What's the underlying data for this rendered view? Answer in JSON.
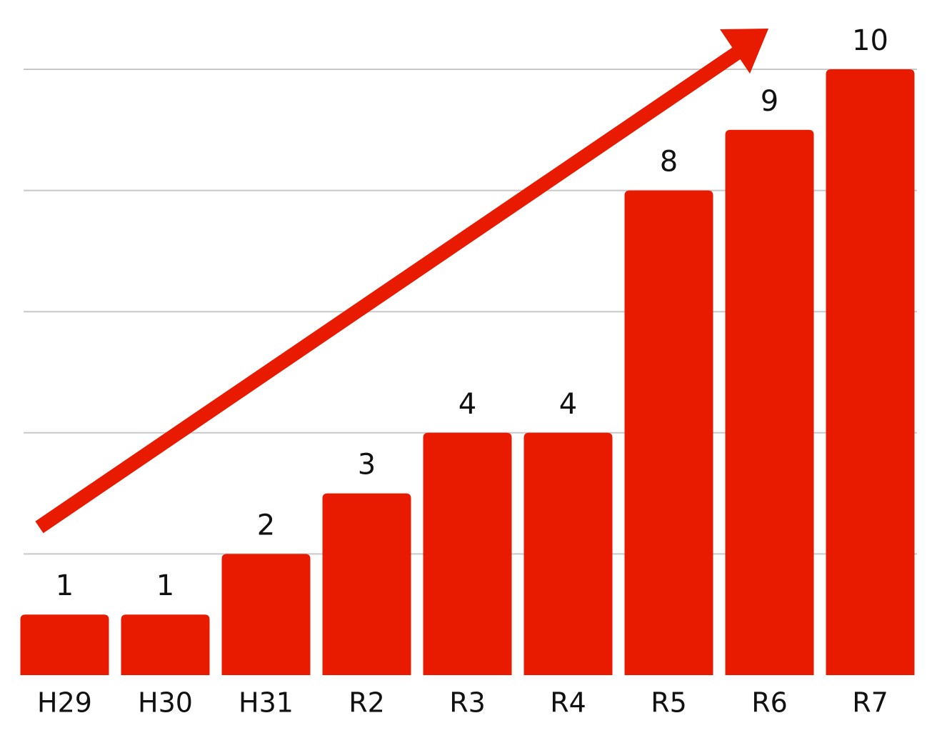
{
  "chart_data": {
    "type": "bar",
    "categories": [
      "H29",
      "H30",
      "H31",
      "R2",
      "R3",
      "R4",
      "R5",
      "R6",
      "R7"
    ],
    "values": [
      1,
      1,
      2,
      3,
      4,
      4,
      8,
      9,
      10
    ],
    "color": "#e81a00",
    "ylim": [
      0,
      10
    ],
    "yticks": [
      2,
      4,
      6,
      8,
      10
    ],
    "grid": true
  }
}
